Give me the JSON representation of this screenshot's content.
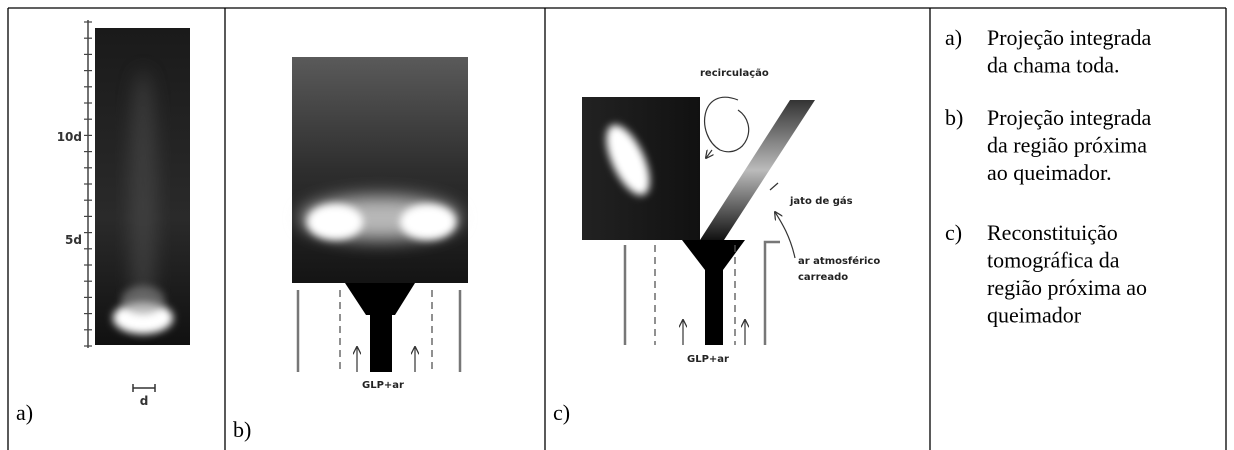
{
  "panels": [
    {
      "label": "a)",
      "annotations": [
        "10d",
        "5d",
        "d"
      ]
    },
    {
      "label": "b)",
      "annotations": [
        "GLP+ar"
      ]
    },
    {
      "label": "c)",
      "annotations": [
        "recirculação",
        "jato de gás",
        "ar atmosférico",
        "carreado",
        "GLP+ar"
      ]
    }
  ],
  "captions": [
    {
      "label": "a)",
      "lines": [
        "Projeção integrada",
        "da chama toda."
      ]
    },
    {
      "label": "b)",
      "lines": [
        "Projeção integrada",
        "da região próxima",
        "ao queimador."
      ]
    },
    {
      "label": "c)",
      "lines": [
        "Reconstituição",
        "tomográfica da",
        "região próxima ao",
        "queimador"
      ]
    }
  ]
}
